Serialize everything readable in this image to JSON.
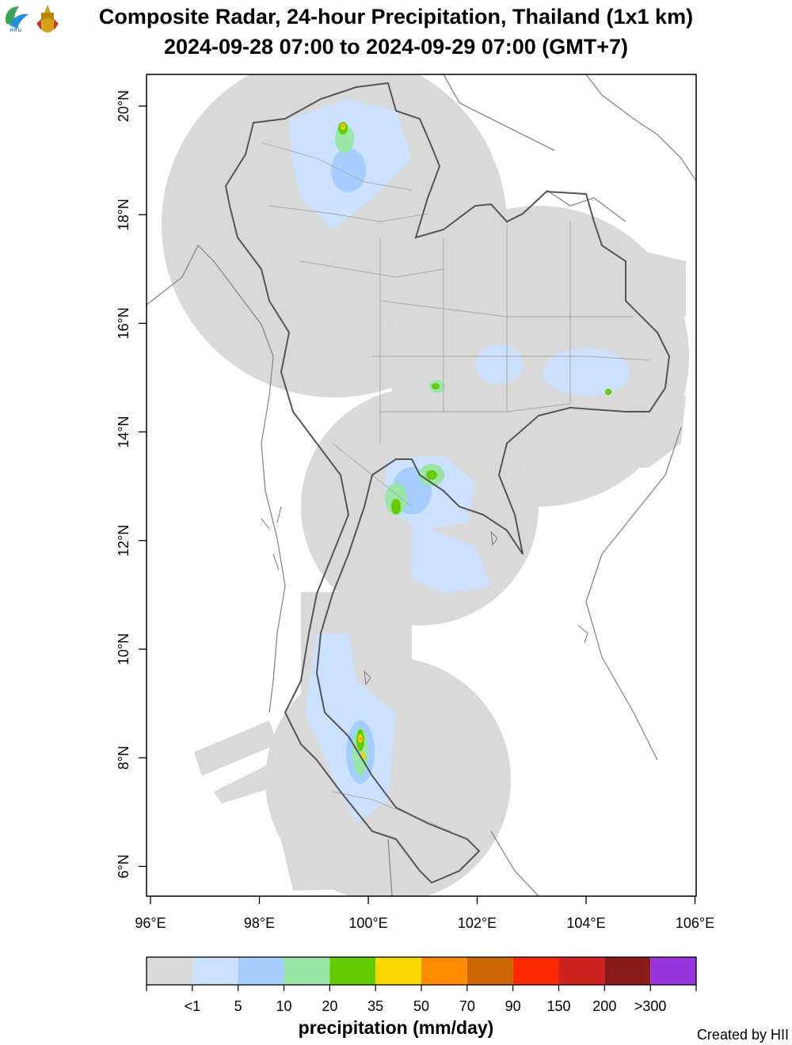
{
  "header": {
    "title_line1": "Composite Radar, 24-hour Precipitation, Thailand (1x1 km)",
    "title_line2": "2024-09-28 07:00 to 2024-09-29 07:00 (GMT+7)",
    "logo1_text": "สสน"
  },
  "axes": {
    "x_ticks": [
      "96°E",
      "98°E",
      "100°E",
      "102°E",
      "104°E",
      "106°E"
    ],
    "y_ticks": [
      "20°N",
      "18°N",
      "16°N",
      "14°N",
      "12°N",
      "10°N",
      "8°N",
      "6°N"
    ]
  },
  "legend": {
    "title": "precipitation (mm/day)",
    "bins": [
      {
        "color": "#d9d9d9",
        "label": "<1"
      },
      {
        "color": "#cce0ff",
        "label": "5"
      },
      {
        "color": "#a6cdff",
        "label": "10"
      },
      {
        "color": "#99e6a6",
        "label": "20"
      },
      {
        "color": "#66cc00",
        "label": "35"
      },
      {
        "color": "#f9d800",
        "label": "50"
      },
      {
        "color": "#ff8c00",
        "label": "70"
      },
      {
        "color": "#cc6600",
        "label": "90"
      },
      {
        "color": "#ff2a00",
        "label": "150"
      },
      {
        "color": "#cc2222",
        "label": "200"
      },
      {
        "color": "#8b1a1a",
        "label": ">300"
      },
      {
        "color": "#9933dd",
        "label": ""
      }
    ]
  },
  "footer": {
    "credit": "Created by HII"
  }
}
